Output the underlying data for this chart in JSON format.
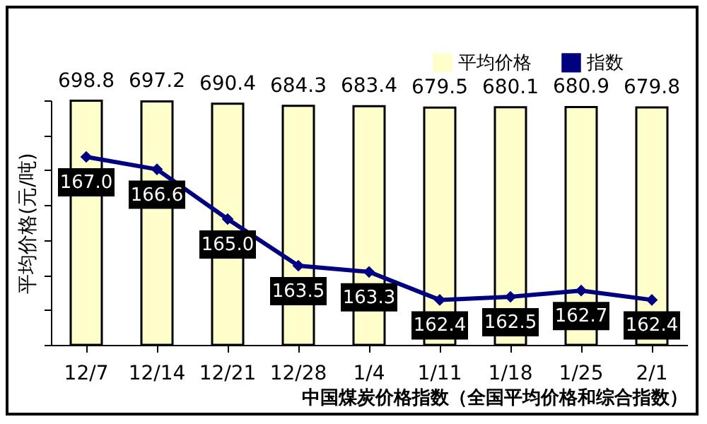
{
  "chart_data": {
    "type": "bar",
    "xlabel": "中国煤炭价格指数（全国平均价格和综合指数）",
    "ylabel": "平均价格(元/吨)",
    "categories": [
      "12/7",
      "12/14",
      "12/21",
      "12/28",
      "1/4",
      "1/11",
      "1/18",
      "1/25",
      "2/1"
    ],
    "series": [
      {
        "name": "平均价格",
        "color": "#ffffcc",
        "values": [
          698.8,
          697.2,
          690.4,
          684.3,
          683.4,
          679.5,
          680.1,
          680.9,
          679.8
        ],
        "value_labels": [
          "698.8",
          "697.2",
          "690.4",
          "684.3",
          "683.4",
          "679.5",
          "680.1",
          "680.9",
          "679.8"
        ]
      },
      {
        "name": "指数",
        "type": "line",
        "axis": "y2",
        "color": "#000080",
        "marker": "diamond",
        "values": [
          167.0,
          166.6,
          165.0,
          163.5,
          163.3,
          162.4,
          162.5,
          162.7,
          162.4
        ],
        "value_labels": [
          "167.0",
          "166.6",
          "165.0",
          "163.5",
          "163.3",
          "162.4",
          "162.5",
          "162.7",
          "162.4"
        ]
      }
    ],
    "legend": "top right",
    "tick_labels": "x",
    "grid": false
  }
}
